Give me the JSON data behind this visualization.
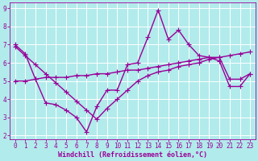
{
  "xlabel": "Windchill (Refroidissement éolien,°C)",
  "bg_color": "#b2ebeb",
  "grid_color": "#ffffff",
  "line_color": "#990099",
  "xlim": [
    -0.5,
    23.5
  ],
  "ylim": [
    1.8,
    9.3
  ],
  "xticks": [
    0,
    1,
    2,
    3,
    4,
    5,
    6,
    7,
    8,
    9,
    10,
    11,
    12,
    13,
    14,
    15,
    16,
    17,
    18,
    19,
    20,
    21,
    22,
    23
  ],
  "yticks": [
    2,
    3,
    4,
    5,
    6,
    7,
    8,
    9
  ],
  "line1_x": [
    0,
    1,
    2,
    3,
    4,
    5,
    6,
    7,
    8,
    9,
    10,
    11,
    12,
    13,
    14,
    15,
    16,
    17,
    18,
    19,
    20,
    21,
    22,
    23
  ],
  "line1_y": [
    7.0,
    6.5,
    5.1,
    3.8,
    3.7,
    3.4,
    3.0,
    2.2,
    3.6,
    4.5,
    4.5,
    5.9,
    6.0,
    7.4,
    8.9,
    7.3,
    7.8,
    7.0,
    6.4,
    6.3,
    6.1,
    4.7,
    4.7,
    5.4
  ],
  "line2_x": [
    0,
    1,
    2,
    3,
    4,
    5,
    6,
    7,
    8,
    9,
    10,
    11,
    12,
    13,
    14,
    15,
    16,
    17,
    18,
    19,
    20,
    21,
    22,
    23
  ],
  "line2_y": [
    6.9,
    6.4,
    5.9,
    5.4,
    4.9,
    4.4,
    3.9,
    3.4,
    2.9,
    3.5,
    4.0,
    4.5,
    5.0,
    5.3,
    5.5,
    5.6,
    5.8,
    5.9,
    6.0,
    6.2,
    6.3,
    6.4,
    6.5,
    6.6
  ],
  "line3_x": [
    0,
    1,
    2,
    3,
    4,
    5,
    6,
    7,
    8,
    9,
    10,
    11,
    12,
    13,
    14,
    15,
    16,
    17,
    18,
    19,
    20,
    21,
    22,
    23
  ],
  "line3_y": [
    5.0,
    5.0,
    5.1,
    5.2,
    5.2,
    5.2,
    5.3,
    5.3,
    5.4,
    5.4,
    5.5,
    5.6,
    5.6,
    5.7,
    5.8,
    5.9,
    6.0,
    6.1,
    6.2,
    6.3,
    6.3,
    5.1,
    5.1,
    5.4
  ],
  "marker": "+",
  "marker_size": 4,
  "line_width": 1.0,
  "tick_fontsize": 5.5,
  "label_fontsize": 6.0
}
